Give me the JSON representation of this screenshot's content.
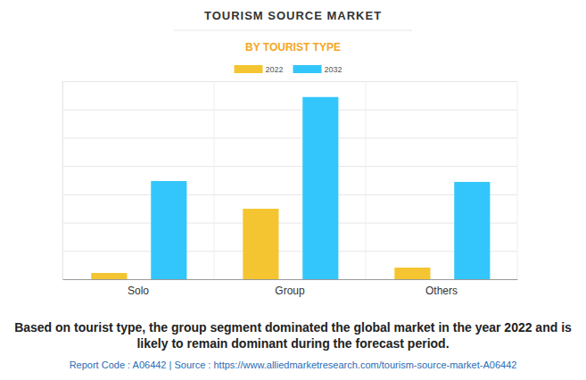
{
  "chart_data": {
    "type": "bar",
    "title": "TOURISM SOURCE MARKET",
    "subtitle": "BY TOURIST TYPE",
    "categories": [
      "Solo",
      "Group",
      "Others"
    ],
    "series": [
      {
        "name": "2022",
        "color": "#f4c530",
        "values": [
          0.22,
          2.49,
          0.41
        ]
      },
      {
        "name": "2032",
        "color": "#33c6fc",
        "values": [
          3.47,
          6.44,
          3.44
        ]
      }
    ],
    "ylim": [
      0,
      7
    ],
    "yticks": [
      0,
      1,
      2,
      3,
      4,
      5,
      6,
      7
    ],
    "grid": true,
    "legend": "top",
    "tick_labels": "x",
    "annotations": [
      "Based on tourist type, the group segment dominated the global market in the year 2022 and is likely to remain dominant during the forecast period.",
      "Report Code : A06442  |  Source : https://www.alliedmarketresearch.com/tourism-source-market-A06442"
    ]
  }
}
